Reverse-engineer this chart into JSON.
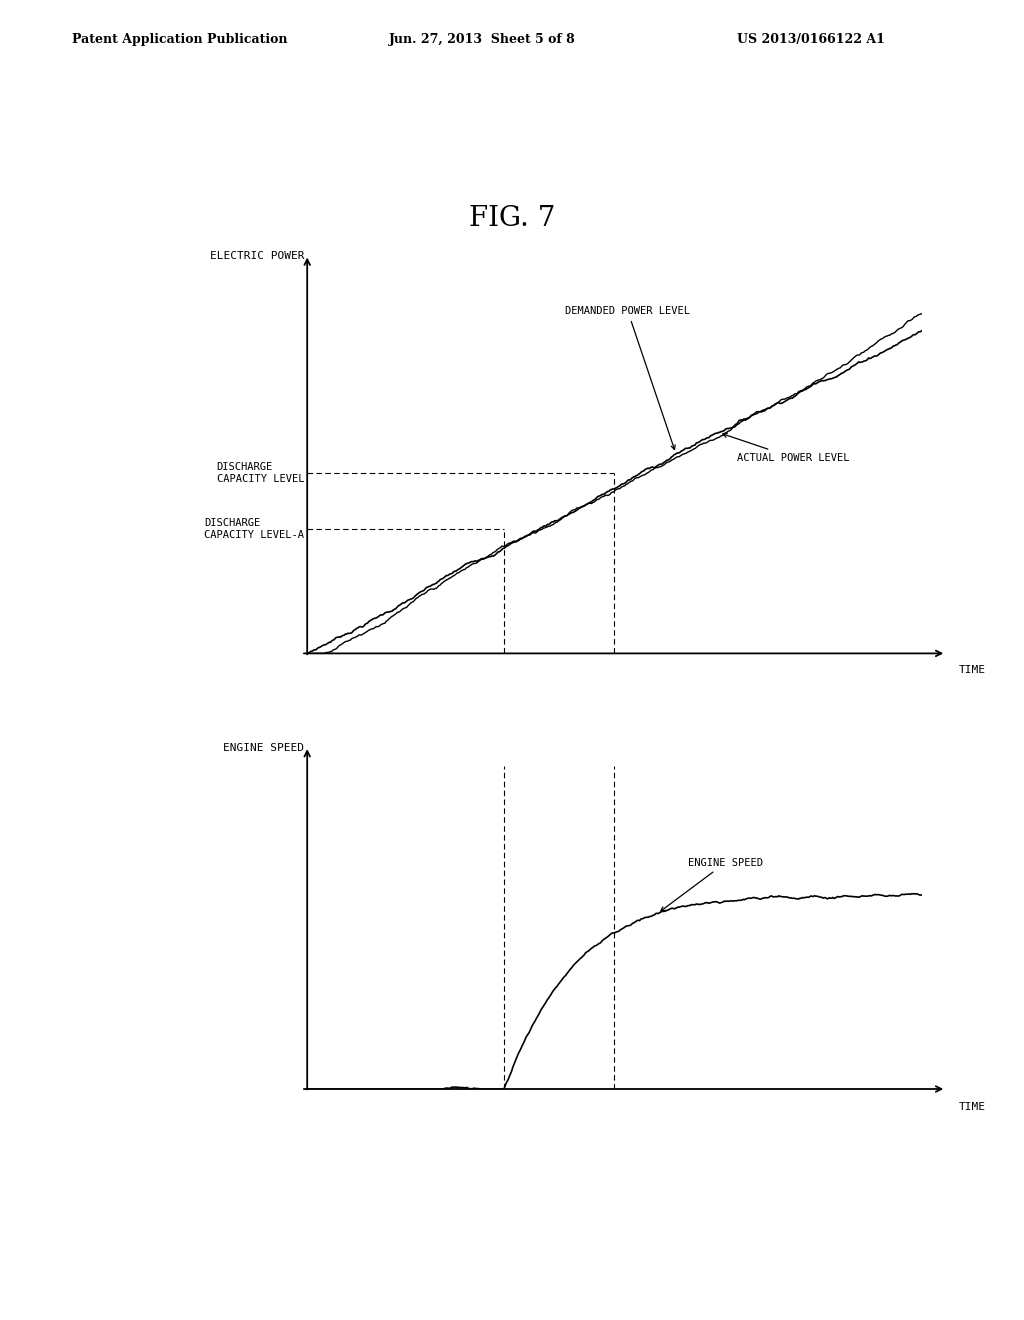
{
  "fig_title": "FIG. 7",
  "header_left": "Patent Application Publication",
  "header_center": "Jun. 27, 2013  Sheet 5 of 8",
  "header_right": "US 2013/0166122 A1",
  "background_color": "#ffffff",
  "text_color": "#000000",
  "top_chart": {
    "ylabel": "ELECTRIC POWER",
    "xlabel": "TIME",
    "discharge_level": 0.48,
    "discharge_level_a": 0.33,
    "t1": 0.32,
    "t2": 0.5,
    "label_demanded": "DEMANDED POWER LEVEL",
    "label_actual": "ACTUAL POWER LEVEL",
    "label_discharge": "DISCHARGE\nCAPACITY LEVEL",
    "label_discharge_a": "DISCHARGE\nCAPACITY LEVEL-A"
  },
  "bottom_chart": {
    "ylabel": "ENGINE SPEED",
    "xlabel": "TIME",
    "t1": 0.32,
    "t2": 0.5,
    "label_engine": "ENGINE SPEED"
  }
}
